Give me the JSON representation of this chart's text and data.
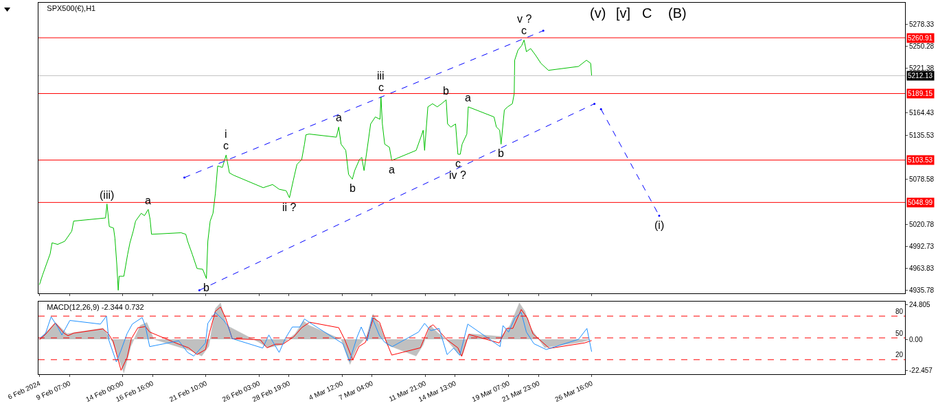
{
  "chart_data": [
    {
      "type": "line",
      "title": "SPX500(€),H1",
      "xlim": [
        "2024-02-06T13:00",
        "2024-04-23T12:00"
      ],
      "xticks": [
        {
          "value": "2024-02-06T15:00",
          "label": null
        },
        {
          "value": "2024-02-09T07:00",
          "label": null
        },
        {
          "value": "2024-02-14T00:00",
          "label": null
        },
        {
          "value": "2024-02-16T16:00",
          "label": null
        },
        {
          "value": "2024-02-21T10:00",
          "label": null
        },
        {
          "value": "2024-02-26T03:00",
          "label": null
        },
        {
          "value": "2024-02-28T19:00",
          "label": null
        },
        {
          "value": "2024-03-04T12:00",
          "label": null
        },
        {
          "value": "2024-03-07T04:00",
          "label": null
        },
        {
          "value": "2024-03-11T21:00",
          "label": null
        },
        {
          "value": "2024-03-14T13:00",
          "label": null
        },
        {
          "value": "2024-03-19T07:00",
          "label": null
        },
        {
          "value": "2024-03-21T23:00",
          "label": null
        },
        {
          "value": "2024-03-26T16:00",
          "label": null
        }
      ],
      "tick_labels": "y",
      "ylim": [
        4932,
        5306
      ],
      "yticks": [
        5278.33,
        5250.28,
        5221.38,
        5164.43,
        5135.53,
        5078.58,
        5020.78,
        4992.73,
        4963.83,
        4935.78
      ],
      "series": [
        {
          "color": "#00c000",
          "x": [
            "2024-02-06T15:00",
            "2024-02-06T22:00",
            "2024-02-07T14:00",
            "2024-02-07T18:00",
            "2024-02-08T06:00",
            "2024-02-08T21:00",
            "2024-02-09T12:00",
            "2024-02-09T16:00",
            "2024-02-12T12:00",
            "2024-02-12T15:00",
            "2024-02-12T20:00",
            "2024-02-13T05:00",
            "2024-02-13T08:00",
            "2024-02-13T12:00",
            "2024-02-13T15:00",
            "2024-02-13T17:00",
            "2024-02-14T03:00",
            "2024-02-14T11:00",
            "2024-02-14T16:00",
            "2024-02-14T23:00",
            "2024-02-15T04:00",
            "2024-02-15T16:00",
            "2024-02-15T23:00",
            "2024-02-16T07:00",
            "2024-02-16T11:00",
            "2024-02-16T14:00",
            "2024-02-19T05:00",
            "2024-02-19T15:00",
            "2024-02-19T19:00",
            "2024-02-20T05:00",
            "2024-02-20T15:00",
            "2024-02-21T03:00",
            "2024-02-21T11:00",
            "2024-02-21T14:00",
            "2024-02-21T19:00",
            "2024-02-22T01:00",
            "2024-02-22T06:00",
            "2024-02-22T11:00",
            "2024-02-22T21:00",
            "2024-02-23T05:00",
            "2024-02-23T12:00",
            "2024-02-23T21:00",
            "2024-02-26T12:00",
            "2024-02-27T08:00",
            "2024-02-27T22:00",
            "2024-02-28T13:00",
            "2024-02-28T20:00",
            "2024-02-29T04:00",
            "2024-02-29T12:00",
            "2024-02-29T22:00",
            "2024-03-01T04:00",
            "2024-03-01T07:00",
            "2024-03-01T14:00",
            "2024-03-04T00:00",
            "2024-03-04T05:00",
            "2024-03-04T10:00",
            "2024-03-04T20:00",
            "2024-03-05T02:00",
            "2024-03-05T10:00",
            "2024-03-05T15:00",
            "2024-03-06T01:00",
            "2024-03-06T06:00",
            "2024-03-06T11:00",
            "2024-03-06T16:00",
            "2024-03-07T01:00",
            "2024-03-07T11:00",
            "2024-03-07T21:00",
            "2024-03-07T23:00",
            "2024-03-08T02:00",
            "2024-03-08T07:00",
            "2024-03-08T17:00",
            "2024-03-08T22:00",
            "2024-03-11T02:00",
            "2024-03-11T12:00",
            "2024-03-11T17:00",
            "2024-03-11T20:00",
            "2024-03-12T03:00",
            "2024-03-12T13:00",
            "2024-03-12T23:00",
            "2024-03-13T08:00",
            "2024-03-13T18:00",
            "2024-03-13T21:00",
            "2024-03-14T04:00",
            "2024-03-14T14:00",
            "2024-03-14T19:00",
            "2024-03-15T00:00",
            "2024-03-15T04:00",
            "2024-03-15T14:00",
            "2024-03-15T17:00",
            "2024-03-18T00:00",
            "2024-03-18T05:00",
            "2024-03-18T12:00",
            "2024-03-18T15:00",
            "2024-03-18T22:00",
            "2024-03-19T05:00",
            "2024-03-19T15:00",
            "2024-03-19T19:00",
            "2024-03-19T20:00",
            "2024-03-20T03:00",
            "2024-03-20T11:00",
            "2024-03-20T16:00",
            "2024-03-20T21:00",
            "2024-03-21T06:00",
            "2024-03-21T16:00",
            "2024-03-22T04:00",
            "2024-03-22T20:00",
            "2024-03-25T12:00",
            "2024-03-26T05:00",
            "2024-03-26T14:00",
            "2024-03-26T16:00"
          ],
          "values": [
            4943,
            4956,
            4983,
            4997,
            4995,
            4999,
            5012,
            5025,
            5029,
            5047,
            5018,
            5016,
            5003,
            4969,
            4936,
            4954,
            4954,
            4982,
            4997,
            5012,
            5025,
            5035,
            5032,
            5040,
            5027,
            5008,
            5010,
            5008,
            4999,
            4982,
            4964,
            4963,
            4951,
            4999,
            5025,
            5035,
            5060,
            5096,
            5094,
            5110,
            5087,
            5084,
            5068,
            5072,
            5066,
            5064,
            5055,
            5077,
            5098,
            5104,
            5124,
            5136,
            5137,
            5133,
            5146,
            5124,
            5116,
            5085,
            5079,
            5090,
            5104,
            5107,
            5090,
            5111,
            5150,
            5159,
            5156,
            5185,
            5150,
            5124,
            5120,
            5103,
            5116,
            5133,
            5142,
            5116,
            5172,
            5176,
            5172,
            5176,
            5181,
            5150,
            5146,
            5150,
            5111,
            5111,
            5124,
            5137,
            5172,
            5159,
            5146,
            5142,
            5124,
            5168,
            5172,
            5176,
            5189,
            5232,
            5245,
            5251,
            5258,
            5243,
            5247,
            5239,
            5228,
            5219,
            5224,
            5232,
            5228,
            5212
          ]
        },
        {
          "color": "#0000ff",
          "line_style": "dashed",
          "x": [
            "2024-02-19T12:00",
            "2024-03-22T09:00"
          ],
          "values": [
            5081,
            5270
          ]
        },
        {
          "color": "#0000ff",
          "line_style": "dashed",
          "x": [
            "2024-02-20T20:00",
            "2024-03-26T22:00"
          ],
          "values": [
            4936,
            5176
          ]
        },
        {
          "color": "#0000ff",
          "line_style": "dashed",
          "x": [
            "2024-03-27T12:00",
            "2024-04-01T16:00"
          ],
          "values": [
            5169,
            5032
          ]
        }
      ],
      "ref_lines": [
        {
          "axis": "y",
          "value": 5260.91,
          "label": "5260.91",
          "color": "#ff0000"
        },
        {
          "axis": "y",
          "value": 5212.13,
          "label": "5212.13",
          "color": "#c0c0c0"
        },
        {
          "axis": "y",
          "value": 5189.15,
          "label": "5189.15",
          "color": "#ff0000"
        },
        {
          "axis": "y",
          "value": 5103.53,
          "label": "5103.53",
          "color": "#ff0000"
        },
        {
          "axis": "y",
          "value": 5048.99,
          "label": "5048.99",
          "color": "#ff0000"
        }
      ],
      "annotations": [
        {
          "text": "(iii)",
          "x": "2024-02-12T15:00",
          "y": 5047
        },
        {
          "text": "a",
          "x": "2024-02-16T07:00",
          "y": 5040
        },
        {
          "text": "b",
          "x": "2024-02-21T11:00",
          "y": 4951
        },
        {
          "text": "c",
          "x": "2024-02-23T05:00",
          "y": 5110
        },
        {
          "text": "i",
          "x": "2024-02-23T05:00",
          "y": 5110
        },
        {
          "text": "ii ?",
          "x": "2024-02-28T20:00",
          "y": 5055
        },
        {
          "text": "a",
          "x": "2024-03-04T05:00",
          "y": 5146
        },
        {
          "text": "b",
          "x": "2024-03-05T10:00",
          "y": 5079
        },
        {
          "text": "c",
          "x": "2024-03-07T23:00",
          "y": 5185
        },
        {
          "text": "iii",
          "x": "2024-03-07T23:00",
          "y": 5185
        },
        {
          "text": "a",
          "x": "2024-03-08T22:00",
          "y": 5103
        },
        {
          "text": "b",
          "x": "2024-03-13T18:00",
          "y": 5181
        },
        {
          "text": "c",
          "x": "2024-03-14T19:00",
          "y": 5111
        },
        {
          "text": "iv ?",
          "x": "2024-03-14T19:00",
          "y": 5111
        },
        {
          "text": "a",
          "x": "2024-03-15T17:00",
          "y": 5172
        },
        {
          "text": "b",
          "x": "2024-03-18T15:00",
          "y": 5124
        },
        {
          "text": "c",
          "x": "2024-03-20T16:00",
          "y": 5258
        },
        {
          "text": "v ?",
          "x": "2024-03-20T16:00",
          "y": 5258
        },
        {
          "text": "(i)",
          "x": "2024-04-01T16:00",
          "y": 5032
        },
        "(v)",
        "[v]",
        "C",
        "(B)"
      ]
    },
    {
      "type": "line",
      "title": "MACD(12,26,9) -2.344 0.732",
      "xlim": [
        "2024-02-06T13:00",
        "2024-04-23T12:00"
      ],
      "xticks": [
        {
          "value": "2024-02-06T15:00",
          "label": "6 Feb 2024"
        },
        {
          "value": "2024-02-09T07:00",
          "label": "9 Feb 07:00"
        },
        {
          "value": "2024-02-14T00:00",
          "label": "14 Feb 00:00"
        },
        {
          "value": "2024-02-16T16:00",
          "label": "16 Feb 16:00"
        },
        {
          "value": "2024-02-21T10:00",
          "label": "21 Feb 10:00"
        },
        {
          "value": "2024-02-26T03:00",
          "label": "26 Feb 03:00"
        },
        {
          "value": "2024-02-28T19:00",
          "label": "28 Feb 19:00"
        },
        {
          "value": "2024-03-04T12:00",
          "label": "4 Mar 12:00"
        },
        {
          "value": "2024-03-07T04:00",
          "label": "7 Mar 04:00"
        },
        {
          "value": "2024-03-11T21:00",
          "label": "11 Mar 21:00"
        },
        {
          "value": "2024-03-14T13:00",
          "label": "14 Mar 13:00"
        },
        {
          "value": "2024-03-19T07:00",
          "label": "19 Mar 07:00"
        },
        {
          "value": "2024-03-21T23:00",
          "label": "21 Mar 23:00"
        },
        {
          "value": "2024-03-26T16:00",
          "label": "26 Mar 16:00"
        }
      ],
      "ylim": [
        -25,
        27
      ],
      "yticks": [
        24.805,
        {
          "value": 0,
          "label": "0.00"
        },
        -22.457
      ],
      "y2lim": [
        0,
        100
      ],
      "y2ticks": [
        80,
        50,
        20
      ],
      "series": [
        {
          "type": "area",
          "color": "#c0c0c0",
          "x": [
            "2024-02-06T15:00",
            "2024-02-08T01:00",
            "2024-02-09T02:00",
            "2024-02-12T07:00",
            "2024-02-13T03:00",
            "2024-02-13T17:00",
            "2024-02-14T03:00",
            "2024-02-14T18:00",
            "2024-02-15T14:00",
            "2024-02-16T04:00",
            "2024-02-16T19:00",
            "2024-02-20T00:00",
            "2024-02-21T01:00",
            "2024-02-21T16:00",
            "2024-02-22T06:00",
            "2024-02-22T17:00",
            "2024-02-23T06:00",
            "2024-02-26T02:00",
            "2024-02-26T22:00",
            "2024-02-28T03:00",
            "2024-02-29T08:00",
            "2024-03-01T02:00",
            "2024-03-01T14:00",
            "2024-03-04T10:00",
            "2024-03-05T05:00",
            "2024-03-05T20:00",
            "2024-03-06T16:00",
            "2024-03-07T06:00",
            "2024-03-07T21:00",
            "2024-03-08T12:00",
            "2024-03-11T02:00",
            "2024-03-11T17:00",
            "2024-03-12T08:00",
            "2024-03-12T23:00",
            "2024-03-13T18:00",
            "2024-03-14T19:00",
            "2024-03-15T04:00",
            "2024-03-15T19:00",
            "2024-03-18T15:00",
            "2024-03-19T10:00",
            "2024-03-20T06:00",
            "2024-03-20T18:00",
            "2024-03-21T06:00",
            "2024-03-22T12:00",
            "2024-03-25T20:00",
            "2024-03-26T14:00"
          ],
          "values": [
            0,
            12,
            4,
            8,
            -2,
            -15,
            -24,
            -5,
            10,
            12,
            0,
            -8,
            -12,
            -5,
            22,
            26,
            10,
            -2,
            -6,
            -4,
            4,
            13,
            10,
            0,
            -18,
            -6,
            2,
            18,
            10,
            -4,
            -12,
            -4,
            10,
            5,
            0,
            -10,
            -12,
            4,
            2,
            10,
            26,
            20,
            8,
            -6,
            -2,
            0
          ]
        },
        {
          "color": "#1e90ff",
          "axis": "y2",
          "x": [
            "2024-02-06T15:00",
            "2024-02-07T04:00",
            "2024-02-07T16:00",
            "2024-02-08T06:00",
            "2024-02-08T15:00",
            "2024-02-09T08:00",
            "2024-02-12T01:00",
            "2024-02-12T14:00",
            "2024-02-12T19:00",
            "2024-02-13T11:00",
            "2024-02-13T21:00",
            "2024-02-14T10:00",
            "2024-02-14T21:00",
            "2024-02-15T18:00",
            "2024-02-16T01:00",
            "2024-02-16T10:00",
            "2024-02-19T00:00",
            "2024-02-19T19:00",
            "2024-02-20T08:00",
            "2024-02-21T09:00",
            "2024-02-21T14:00",
            "2024-02-22T06:00",
            "2024-02-23T00:00",
            "2024-02-23T09:00",
            "2024-02-23T18:00",
            "2024-02-26T11:00",
            "2024-02-27T00:00",
            "2024-02-27T22:00",
            "2024-02-28T11:00",
            "2024-02-29T02:00",
            "2024-02-29T18:00",
            "2024-03-01T04:00",
            "2024-03-01T20:00",
            "2024-03-04T14:00",
            "2024-03-05T04:00",
            "2024-03-05T20:00",
            "2024-03-06T05:00",
            "2024-03-06T18:00",
            "2024-03-07T04:00",
            "2024-03-07T20:00",
            "2024-03-08T07:00",
            "2024-03-08T23:00",
            "2024-03-11T07:00",
            "2024-03-11T20:00",
            "2024-03-12T09:00",
            "2024-03-13T03:00",
            "2024-03-13T20:00",
            "2024-03-14T10:00",
            "2024-03-14T23:00",
            "2024-03-15T16:00",
            "2024-03-18T13:00",
            "2024-03-18T19:00",
            "2024-03-19T07:00",
            "2024-03-19T21:00",
            "2024-03-20T10:00",
            "2024-03-20T21:00",
            "2024-03-21T13:00",
            "2024-03-22T15:00",
            "2024-03-25T12:00",
            "2024-03-26T06:00",
            "2024-03-26T16:00"
          ],
          "values": [
            49,
            56,
            79,
            65,
            54,
            74,
            69,
            80,
            47,
            17,
            33,
            56,
            69,
            78,
            66,
            38,
            46,
            30,
            25,
            43,
            70,
            85,
            74,
            66,
            49,
            36,
            54,
            30,
            49,
            65,
            65,
            76,
            69,
            42,
            18,
            51,
            65,
            46,
            78,
            53,
            44,
            38,
            58,
            70,
            60,
            63,
            27,
            36,
            26,
            69,
            38,
            67,
            58,
            78,
            85,
            58,
            42,
            34,
            48,
            63,
            31
          ]
        },
        {
          "color": "#ff0000",
          "x": [
            "2024-02-06T15:00",
            "2024-02-07T04:00",
            "2024-02-08T01:00",
            "2024-02-08T19:00",
            "2024-02-09T04:00",
            "2024-02-09T16:00",
            "2024-02-12T06:00",
            "2024-02-12T17:00",
            "2024-02-13T04:00",
            "2024-02-13T21:00",
            "2024-02-14T10:00",
            "2024-02-14T19:00",
            "2024-02-15T09:00",
            "2024-02-16T01:00",
            "2024-02-16T10:00",
            "2024-02-19T00:00",
            "2024-02-19T21:00",
            "2024-02-20T15:00",
            "2024-02-21T09:00",
            "2024-02-21T18:00",
            "2024-02-22T06:00",
            "2024-02-22T17:00",
            "2024-02-23T04:00",
            "2024-02-23T18:00",
            "2024-02-26T06:00",
            "2024-02-26T20:00",
            "2024-02-27T14:00",
            "2024-02-28T06:00",
            "2024-02-29T05:00",
            "2024-02-29T22:00",
            "2024-03-01T15:00",
            "2024-03-04T05:00",
            "2024-03-04T18:00",
            "2024-03-05T11:00",
            "2024-03-06T00:00",
            "2024-03-06T14:00",
            "2024-03-07T07:00",
            "2024-03-07T20:00",
            "2024-03-08T10:00",
            "2024-03-08T22:00",
            "2024-03-11T11:00",
            "2024-03-12T05:00",
            "2024-03-12T14:00",
            "2024-03-13T07:00",
            "2024-03-13T20:00",
            "2024-03-14T19:00",
            "2024-03-15T03:00",
            "2024-03-15T18:00",
            "2024-03-18T11:00",
            "2024-03-19T03:00",
            "2024-03-19T16:00",
            "2024-03-20T10:00",
            "2024-03-20T23:00",
            "2024-03-21T11:00",
            "2024-03-22T22:00",
            "2024-03-26T01:00",
            "2024-03-26T16:00"
          ],
          "values": [
            -0.4,
            3.5,
            11.7,
            4.4,
            2.6,
            4.4,
            7.4,
            4.4,
            -1.3,
            -22.2,
            -13.1,
            0.4,
            8.3,
            9.1,
            5.2,
            -3.5,
            -6.1,
            -10.9,
            -7.4,
            5.2,
            20,
            23.1,
            15.2,
            0.4,
            -0.4,
            -6.1,
            -3.5,
            -3.5,
            1.7,
            8.3,
            12.2,
            8.3,
            -0.4,
            -14.8,
            -5.2,
            -2.2,
            15.2,
            12.2,
            -1.3,
            -11.3,
            -6.1,
            8.3,
            10.4,
            4.4,
            -0.4,
            -6.1,
            -12.2,
            3.5,
            -2.6,
            7.8,
            7.8,
            21.3,
            15.2,
            3.9,
            -6.5,
            -2.6,
            -0.9
          ]
        }
      ],
      "ref_lines": [
        {
          "axis": "y2",
          "value": 80,
          "color": "#ff0000",
          "line_style": "dashed"
        },
        {
          "axis": "y2",
          "value": 50,
          "color": "#ff0000",
          "line_style": "dashed"
        },
        {
          "axis": "y2",
          "value": 20,
          "color": "#ff0000",
          "line_style": "dashed"
        }
      ]
    }
  ]
}
